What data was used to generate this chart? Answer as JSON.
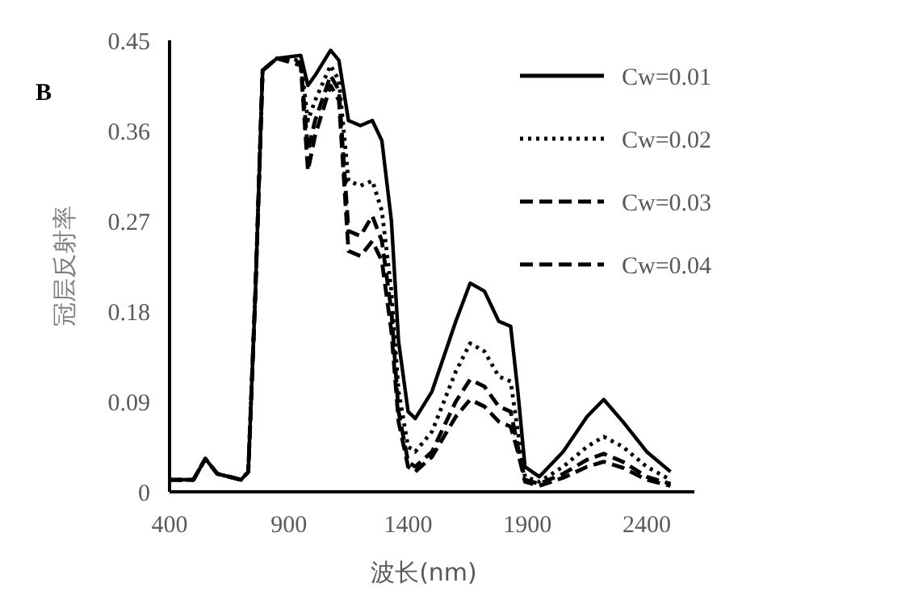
{
  "chart_data": {
    "type": "line",
    "xlabel": "波长(nm)",
    "ylabel": "冠层反射率",
    "annotations": [
      "B"
    ],
    "x": [
      400,
      500,
      550,
      600,
      700,
      730,
      760,
      790,
      850,
      950,
      980,
      1010,
      1075,
      1110,
      1150,
      1200,
      1250,
      1290,
      1330,
      1360,
      1400,
      1430,
      1500,
      1600,
      1660,
      1720,
      1780,
      1830,
      1860,
      1890,
      1950,
      2050,
      2150,
      2220,
      2300,
      2400,
      2500
    ],
    "xlim": [
      400,
      2600
    ],
    "xticks": [
      400,
      900,
      1400,
      1900,
      2400
    ],
    "ylim": [
      0,
      0.45
    ],
    "yticks": [
      0,
      0.09,
      0.18,
      0.27,
      0.36,
      0.45
    ],
    "grid": false,
    "legend": "top right",
    "marker": "none",
    "series": [
      {
        "name": "Cw=0.01",
        "color": "#000000",
        "line_style": "solid",
        "values": [
          0.012,
          0.012,
          0.033,
          0.018,
          0.012,
          0.02,
          0.2,
          0.42,
          0.432,
          0.435,
          0.405,
          0.415,
          0.44,
          0.43,
          0.37,
          0.365,
          0.37,
          0.35,
          0.27,
          0.15,
          0.08,
          0.073,
          0.1,
          0.17,
          0.208,
          0.2,
          0.17,
          0.165,
          0.1,
          0.025,
          0.015,
          0.04,
          0.075,
          0.092,
          0.07,
          0.04,
          0.02
        ]
      },
      {
        "name": "Cw=0.02",
        "color": "#000000",
        "line_style": "dotted",
        "values": [
          0.012,
          0.012,
          0.033,
          0.018,
          0.012,
          0.02,
          0.2,
          0.42,
          0.432,
          0.43,
          0.37,
          0.39,
          0.425,
          0.41,
          0.31,
          0.305,
          0.31,
          0.28,
          0.2,
          0.1,
          0.045,
          0.04,
          0.06,
          0.12,
          0.148,
          0.14,
          0.115,
          0.11,
          0.06,
          0.015,
          0.01,
          0.025,
          0.045,
          0.055,
          0.045,
          0.025,
          0.012
        ]
      },
      {
        "name": "Cw=0.03",
        "color": "#000000",
        "line_style": "dashed",
        "values": [
          0.012,
          0.012,
          0.033,
          0.018,
          0.012,
          0.02,
          0.2,
          0.42,
          0.432,
          0.428,
          0.34,
          0.37,
          0.415,
          0.4,
          0.26,
          0.255,
          0.275,
          0.25,
          0.18,
          0.08,
          0.03,
          0.025,
          0.04,
          0.09,
          0.112,
          0.105,
          0.085,
          0.08,
          0.045,
          0.012,
          0.008,
          0.018,
          0.032,
          0.038,
          0.03,
          0.015,
          0.008
        ]
      },
      {
        "name": "Cw=0.04",
        "color": "#000000",
        "line_style": "dashed",
        "values": [
          0.012,
          0.012,
          0.033,
          0.018,
          0.012,
          0.02,
          0.2,
          0.42,
          0.432,
          0.425,
          0.32,
          0.355,
          0.405,
          0.39,
          0.24,
          0.235,
          0.25,
          0.23,
          0.16,
          0.07,
          0.025,
          0.02,
          0.035,
          0.075,
          0.092,
          0.085,
          0.07,
          0.065,
          0.04,
          0.01,
          0.006,
          0.014,
          0.025,
          0.03,
          0.024,
          0.012,
          0.006
        ]
      }
    ]
  }
}
